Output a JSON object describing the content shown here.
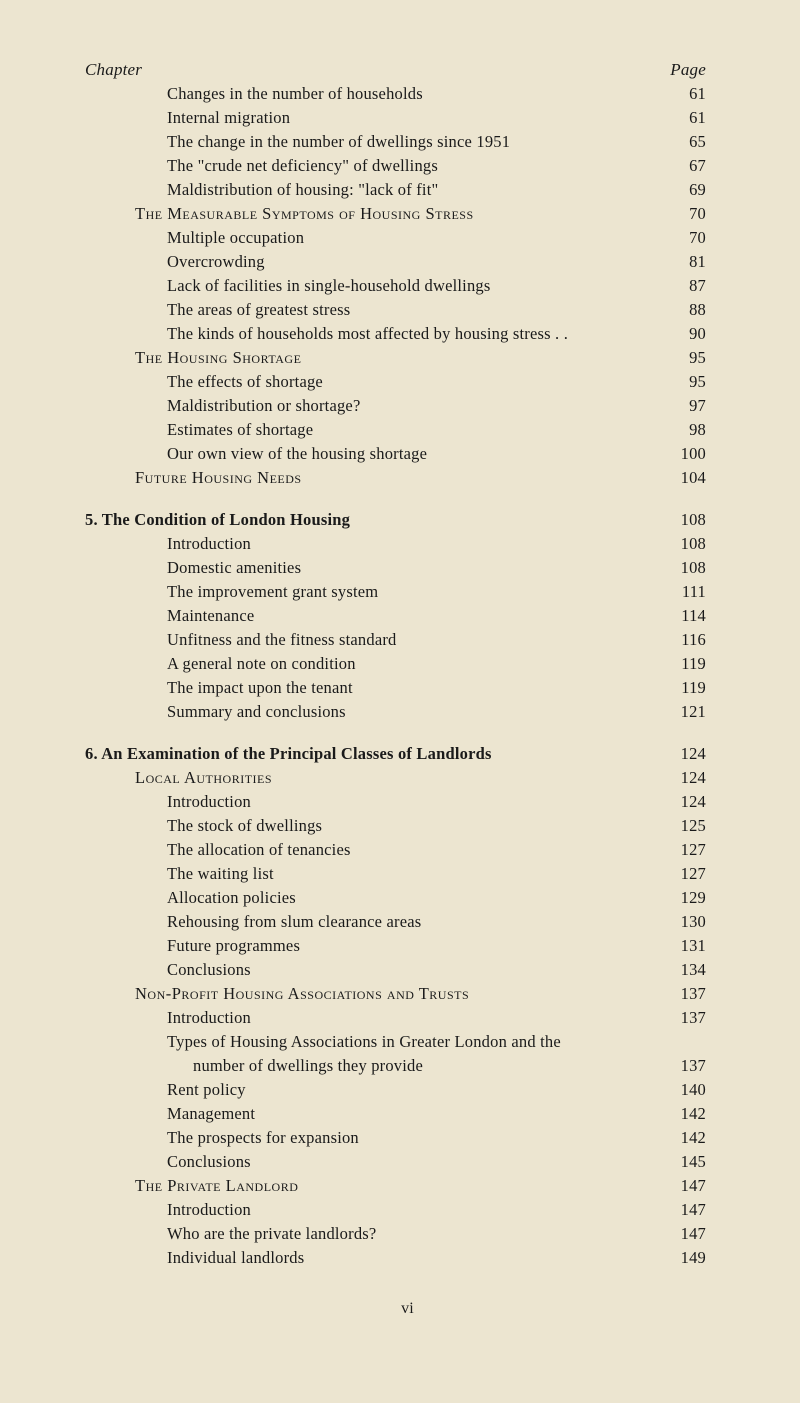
{
  "header": {
    "left": "Chapter",
    "right": "Page"
  },
  "footer": {
    "roman": "vi"
  },
  "lines": [
    {
      "indent": 2,
      "label": "Changes in the number of households",
      "page": "61",
      "style": ""
    },
    {
      "indent": 2,
      "label": "Internal migration",
      "page": "61",
      "style": ""
    },
    {
      "indent": 2,
      "label": "The change in the number of dwellings since 1951",
      "page": "65",
      "style": ""
    },
    {
      "indent": 2,
      "label": "The \"crude net deficiency\" of dwellings",
      "page": "67",
      "style": ""
    },
    {
      "indent": 2,
      "label": "Maldistribution of housing: \"lack of fit\"",
      "page": "69",
      "style": ""
    },
    {
      "indent": 1,
      "label": "The Measurable Symptoms of Housing Stress",
      "page": "70",
      "style": "smallcaps"
    },
    {
      "indent": 2,
      "label": "Multiple occupation",
      "page": "70",
      "style": ""
    },
    {
      "indent": 2,
      "label": "Overcrowding",
      "page": "81",
      "style": ""
    },
    {
      "indent": 2,
      "label": "Lack of facilities in single-household dwellings",
      "page": "87",
      "style": ""
    },
    {
      "indent": 2,
      "label": "The areas of greatest stress",
      "page": "88",
      "style": ""
    },
    {
      "indent": 2,
      "label": "The kinds of households most affected by housing stress . .",
      "page": "90",
      "style": ""
    },
    {
      "indent": 1,
      "label": "The Housing Shortage",
      "page": "95",
      "style": "smallcaps"
    },
    {
      "indent": 2,
      "label": "The effects of shortage",
      "page": "95",
      "style": ""
    },
    {
      "indent": 2,
      "label": "Maldistribution or shortage?",
      "page": "97",
      "style": ""
    },
    {
      "indent": 2,
      "label": "Estimates of shortage",
      "page": "98",
      "style": ""
    },
    {
      "indent": 2,
      "label": "Our own view of the housing shortage",
      "page": "100",
      "style": ""
    },
    {
      "indent": 1,
      "label": "Future Housing Needs",
      "page": "104",
      "style": "smallcaps"
    },
    {
      "gap": true
    },
    {
      "indent": 0,
      "label": "5. The Condition of London Housing",
      "page": "108",
      "style": "bold"
    },
    {
      "indent": 2,
      "label": "Introduction",
      "page": "108",
      "style": ""
    },
    {
      "indent": 2,
      "label": "Domestic amenities",
      "page": "108",
      "style": ""
    },
    {
      "indent": 2,
      "label": "The improvement grant system",
      "page": "111",
      "style": ""
    },
    {
      "indent": 2,
      "label": "Maintenance",
      "page": "114",
      "style": ""
    },
    {
      "indent": 2,
      "label": "Unfitness and the fitness standard",
      "page": "116",
      "style": ""
    },
    {
      "indent": 2,
      "label": "A general note on condition",
      "page": "119",
      "style": ""
    },
    {
      "indent": 2,
      "label": "The impact upon the tenant",
      "page": "119",
      "style": ""
    },
    {
      "indent": 2,
      "label": "Summary and conclusions",
      "page": "121",
      "style": ""
    },
    {
      "gap": true
    },
    {
      "indent": 0,
      "label": "6. An Examination of the Principal Classes of Landlords",
      "page": "124",
      "style": "bold"
    },
    {
      "indent": 1,
      "label": "Local Authorities",
      "page": "124",
      "style": "smallcaps"
    },
    {
      "indent": 2,
      "label": "Introduction",
      "page": "124",
      "style": ""
    },
    {
      "indent": 2,
      "label": "The stock of dwellings",
      "page": "125",
      "style": ""
    },
    {
      "indent": 2,
      "label": "The allocation of tenancies",
      "page": "127",
      "style": ""
    },
    {
      "indent": 2,
      "label": "The waiting list",
      "page": "127",
      "style": ""
    },
    {
      "indent": 2,
      "label": "Allocation policies",
      "page": "129",
      "style": ""
    },
    {
      "indent": 2,
      "label": "Rehousing from slum clearance areas",
      "page": "130",
      "style": ""
    },
    {
      "indent": 2,
      "label": "Future programmes",
      "page": "131",
      "style": ""
    },
    {
      "indent": 2,
      "label": "Conclusions",
      "page": "134",
      "style": ""
    },
    {
      "indent": 1,
      "label": "Non-Profit Housing Associations and Trusts",
      "page": "137",
      "style": "smallcaps"
    },
    {
      "indent": 2,
      "label": "Introduction",
      "page": "137",
      "style": ""
    },
    {
      "indent": 2,
      "label": "Types of Housing Associations in Greater London and the",
      "page": "",
      "style": ""
    },
    {
      "indent": 3,
      "label": "number of dwellings they provide",
      "page": "137",
      "style": ""
    },
    {
      "indent": 2,
      "label": "Rent policy",
      "page": "140",
      "style": ""
    },
    {
      "indent": 2,
      "label": "Management",
      "page": "142",
      "style": ""
    },
    {
      "indent": 2,
      "label": "The prospects for expansion",
      "page": "142",
      "style": ""
    },
    {
      "indent": 2,
      "label": "Conclusions",
      "page": "145",
      "style": ""
    },
    {
      "indent": 1,
      "label": "The Private Landlord",
      "page": "147",
      "style": "smallcaps"
    },
    {
      "indent": 2,
      "label": "Introduction",
      "page": "147",
      "style": ""
    },
    {
      "indent": 2,
      "label": "Who are the private landlords?",
      "page": "147",
      "style": ""
    },
    {
      "indent": 2,
      "label": "Individual landlords",
      "page": "149",
      "style": ""
    }
  ]
}
